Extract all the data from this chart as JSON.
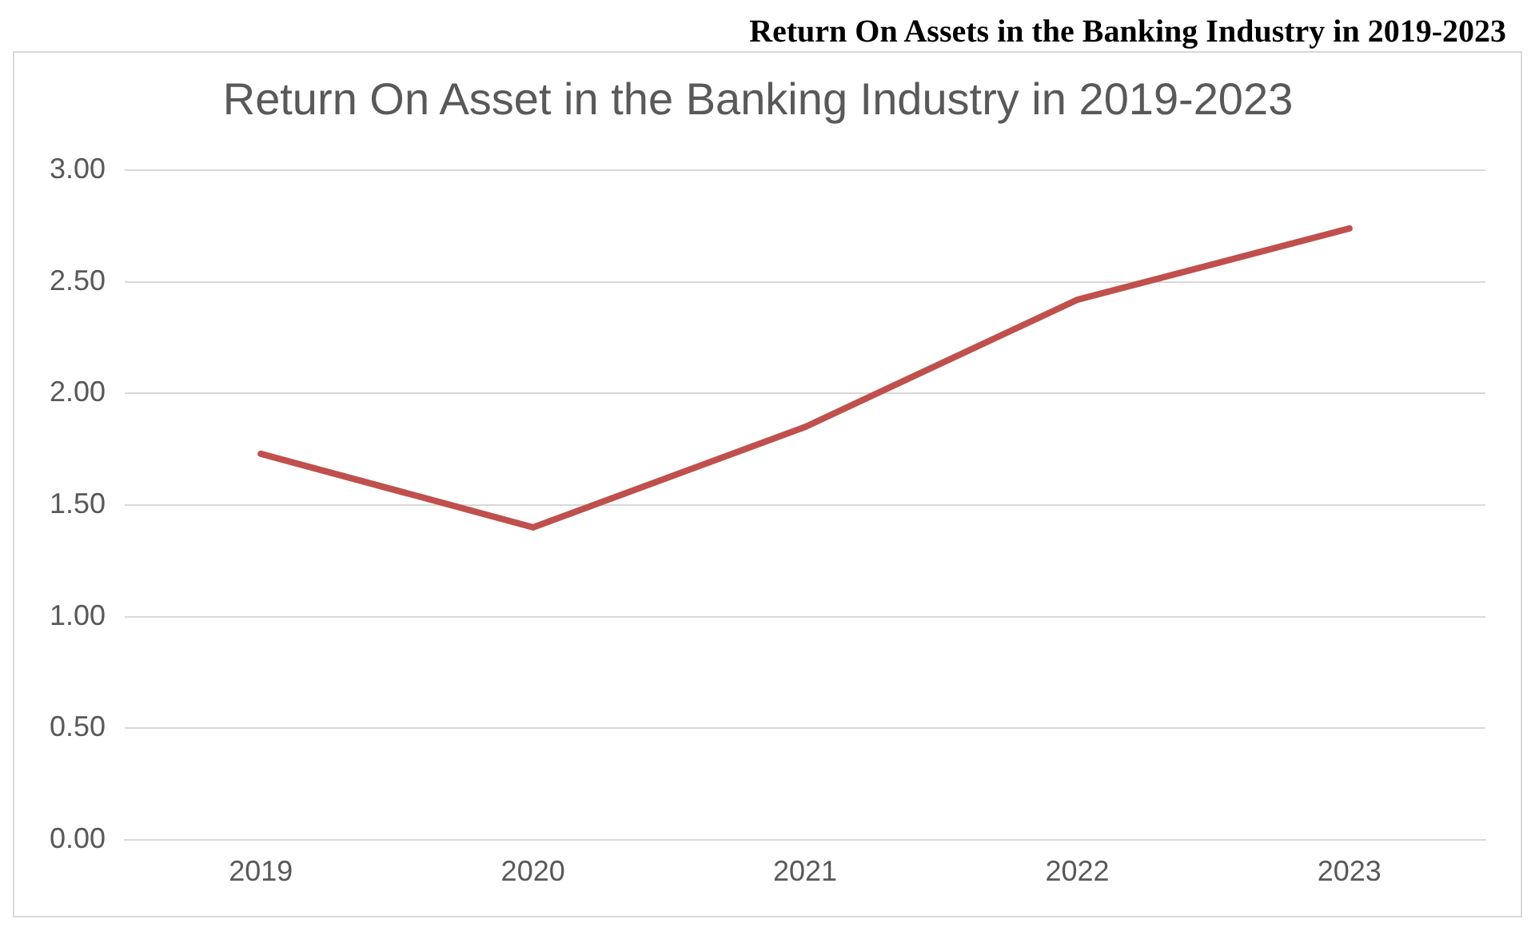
{
  "chart_data": {
    "type": "line",
    "title": "Return On Asset in the Banking Industry in 2019-2023",
    "annotations": [
      "Return On Assets in the Banking Industry in 2019-2023"
    ],
    "categories": [
      "2019",
      "2020",
      "2021",
      "2022",
      "2023"
    ],
    "series": [
      {
        "color": "#c0504d",
        "values": [
          1.73,
          1.4,
          1.85,
          2.42,
          2.74
        ]
      }
    ],
    "ylim": [
      0,
      3
    ],
    "yticks": [
      {
        "value": 0,
        "label": "0.00"
      },
      {
        "value": 0.5,
        "label": "0.50"
      },
      {
        "value": 1,
        "label": "1.00"
      },
      {
        "value": 1.5,
        "label": "1.50"
      },
      {
        "value": 2,
        "label": "2.00"
      },
      {
        "value": 2.5,
        "label": "2.50"
      },
      {
        "value": 3,
        "label": "3.00"
      }
    ],
    "grid": "y",
    "legend": false,
    "marker": "none",
    "line_style": "solid"
  }
}
